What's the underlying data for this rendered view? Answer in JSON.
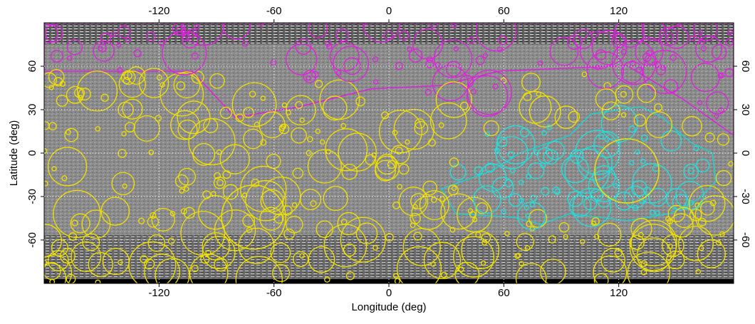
{
  "chart_data": {
    "type": "map",
    "xlabel": "Longitude (deg)",
    "ylabel": "Latitude (deg)",
    "xlim": [
      -180,
      180
    ],
    "ylim": [
      -90,
      90
    ],
    "xticks": [
      -120,
      -60,
      0,
      60,
      120
    ],
    "yticks": [
      60,
      30,
      0,
      -30,
      -60
    ],
    "grid": true
  }
}
